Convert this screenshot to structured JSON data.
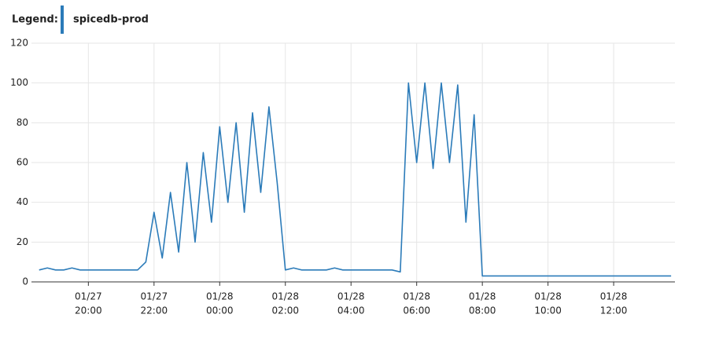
{
  "chart_data": {
    "type": "line",
    "legend_label": "Legend:",
    "x": [
      "01/27 18:30",
      "01/27 18:45",
      "01/27 19:00",
      "01/27 19:15",
      "01/27 19:30",
      "01/27 19:45",
      "01/27 20:00",
      "01/27 20:15",
      "01/27 20:30",
      "01/27 20:45",
      "01/27 21:00",
      "01/27 21:15",
      "01/27 21:30",
      "01/27 21:45",
      "01/27 22:00",
      "01/27 22:15",
      "01/27 22:30",
      "01/27 22:45",
      "01/27 23:00",
      "01/27 23:15",
      "01/27 23:30",
      "01/27 23:45",
      "01/28 00:00",
      "01/28 00:15",
      "01/28 00:30",
      "01/28 00:45",
      "01/28 01:00",
      "01/28 01:15",
      "01/28 01:30",
      "01/28 01:45",
      "01/28 02:00",
      "01/28 02:15",
      "01/28 02:30",
      "01/28 02:45",
      "01/28 03:00",
      "01/28 03:15",
      "01/28 03:30",
      "01/28 03:45",
      "01/28 04:00",
      "01/28 04:15",
      "01/28 04:30",
      "01/28 04:45",
      "01/28 05:00",
      "01/28 05:15",
      "01/28 05:30",
      "01/28 05:45",
      "01/28 06:00",
      "01/28 06:15",
      "01/28 06:30",
      "01/28 06:45",
      "01/28 07:00",
      "01/28 07:15",
      "01/28 07:30",
      "01/28 07:45",
      "01/28 08:00",
      "01/28 08:15",
      "01/28 08:30",
      "01/28 08:45",
      "01/28 09:00",
      "01/28 09:15",
      "01/28 09:30",
      "01/28 09:45",
      "01/28 10:00",
      "01/28 10:15",
      "01/28 10:30",
      "01/28 10:45",
      "01/28 11:00",
      "01/28 11:15",
      "01/28 11:30",
      "01/28 11:45",
      "01/28 12:00",
      "01/28 12:15",
      "01/28 12:30",
      "01/28 12:45",
      "01/28 13:00",
      "01/28 13:15",
      "01/28 13:30",
      "01/28 13:45"
    ],
    "series": [
      {
        "name": "spicedb-prod",
        "color": "#2b7bb9",
        "values": [
          6,
          7,
          6,
          6,
          7,
          6,
          6,
          6,
          6,
          6,
          6,
          6,
          6,
          10,
          35,
          12,
          45,
          15,
          60,
          20,
          65,
          30,
          78,
          40,
          80,
          35,
          85,
          45,
          88,
          50,
          6,
          7,
          6,
          6,
          6,
          6,
          7,
          6,
          6,
          6,
          6,
          6,
          6,
          6,
          5,
          100,
          60,
          100,
          57,
          100,
          60,
          99,
          30,
          84,
          3,
          3,
          3,
          3,
          3,
          3,
          3,
          3,
          3,
          3,
          3,
          3,
          3,
          3,
          3,
          3,
          3,
          3,
          3,
          3,
          3,
          3,
          3,
          3
        ]
      }
    ],
    "xlim": [
      "01/27 18:16",
      "01/28 13:52"
    ],
    "xticks": [
      {
        "value": "01/27 20:00",
        "label": [
          "01/27",
          "20:00"
        ]
      },
      {
        "value": "01/27 22:00",
        "label": [
          "01/27",
          "22:00"
        ]
      },
      {
        "value": "01/28 00:00",
        "label": [
          "01/28",
          "00:00"
        ]
      },
      {
        "value": "01/28 02:00",
        "label": [
          "01/28",
          "02:00"
        ]
      },
      {
        "value": "01/28 04:00",
        "label": [
          "01/28",
          "04:00"
        ]
      },
      {
        "value": "01/28 06:00",
        "label": [
          "01/28",
          "06:00"
        ]
      },
      {
        "value": "01/28 08:00",
        "label": [
          "01/28",
          "08:00"
        ]
      },
      {
        "value": "01/28 10:00",
        "label": [
          "01/28",
          "10:00"
        ]
      },
      {
        "value": "01/28 12:00",
        "label": [
          "01/28",
          "12:00"
        ]
      }
    ],
    "ylim": [
      0,
      120
    ],
    "yticks": [
      0,
      20,
      40,
      60,
      80,
      100,
      120
    ],
    "grid": true
  }
}
